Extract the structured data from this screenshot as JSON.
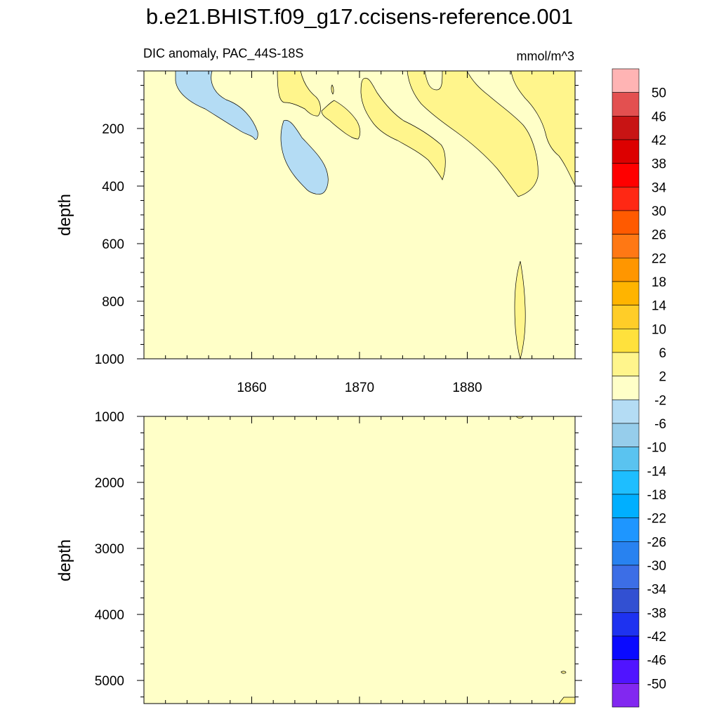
{
  "title": "b.e21.BHIST.f09_g17.ccisens-reference.001",
  "colors": {
    "background_field": "#FFFFC8",
    "positive_2_6": "#FFF58C",
    "negative_2_6": "#B4DCF4",
    "contour_line": "#000000"
  },
  "chart_data": [
    {
      "type": "heatmap",
      "panel": "upper",
      "subtitle_left": "DIC anomaly, PAC_44S-18S",
      "subtitle_right": "mmol/m^3",
      "ylabel": "depth",
      "xlabel": "",
      "xlim": [
        1850,
        1890
      ],
      "ylim": [
        0,
        1000
      ],
      "y_reversed": true,
      "x_ticks": [
        "1860",
        "1870",
        "1880"
      ],
      "y_ticks": [
        "200",
        "400",
        "600",
        "800",
        "1000"
      ],
      "dominant_band": "-2 to 2"
    },
    {
      "type": "heatmap",
      "panel": "lower",
      "ylabel": "depth",
      "xlim": [
        1850,
        1890
      ],
      "ylim": [
        1000,
        5350
      ],
      "y_reversed": true,
      "y_ticks": [
        "1000",
        "2000",
        "3000",
        "4000",
        "5000"
      ],
      "dominant_band": "-2 to 2"
    }
  ],
  "colorbar": {
    "labels": [
      "50",
      "46",
      "42",
      "38",
      "34",
      "30",
      "26",
      "22",
      "18",
      "14",
      "10",
      "6",
      "2",
      "-2",
      "-6",
      "-10",
      "-14",
      "-18",
      "-22",
      "-26",
      "-30",
      "-34",
      "-38",
      "-42",
      "-46",
      "-50"
    ],
    "colors": [
      "#FFB4B4",
      "#E35050",
      "#C81414",
      "#DC0000",
      "#FF0000",
      "#FF2814",
      "#FF5A00",
      "#FF7814",
      "#FF9600",
      "#FFB400",
      "#FFCD28",
      "#FFE13C",
      "#FFF58C",
      "#FFFFC8",
      "#B4DCF4",
      "#96CDEB",
      "#5AC3F0",
      "#1EBEFF",
      "#00AFFF",
      "#1E96FF",
      "#2882F0",
      "#3C6EE6",
      "#3250D2",
      "#1E32F0",
      "#0A0AFF",
      "#5014FF",
      "#8228F0"
    ]
  }
}
